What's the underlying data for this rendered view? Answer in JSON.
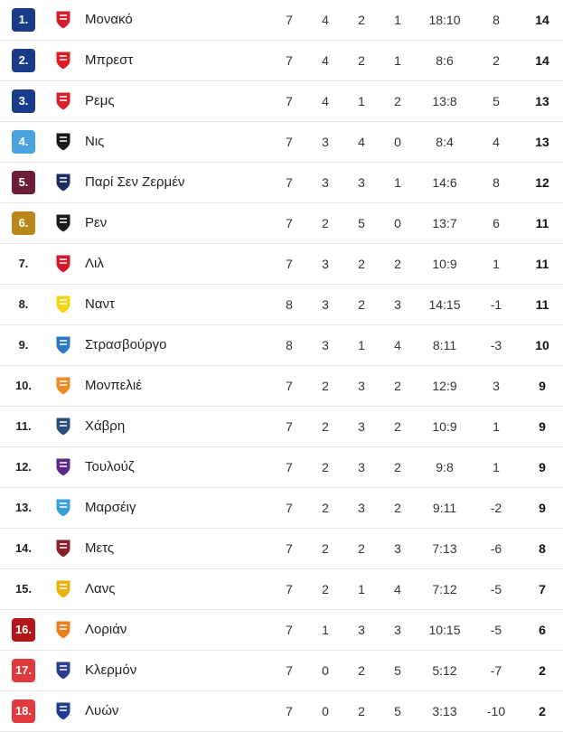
{
  "colors": {
    "champions": "#1a3a8a",
    "europa": "#4aa3df",
    "cl_qual": "#6b1e3a",
    "conference": "#b8861b",
    "playoff_down": "#e03a3e",
    "relegation": "#b3171c"
  },
  "rows": [
    {
      "rank": "1.",
      "team": "Μονακό",
      "played": "7",
      "w": "4",
      "d": "2",
      "l": "1",
      "goals": "18:10",
      "diff": "8",
      "pts": "14",
      "zone": "champions",
      "logo": "monaco-crest-icon",
      "logo_color": "#d0202e"
    },
    {
      "rank": "2.",
      "team": "Μπρεστ",
      "played": "7",
      "w": "4",
      "d": "2",
      "l": "1",
      "goals": "8:6",
      "diff": "2",
      "pts": "14",
      "zone": "champions",
      "logo": "brest-crest-icon",
      "logo_color": "#e21b23"
    },
    {
      "rank": "3.",
      "team": "Ρεμς",
      "played": "7",
      "w": "4",
      "d": "1",
      "l": "2",
      "goals": "13:8",
      "diff": "5",
      "pts": "13",
      "zone": "champions",
      "logo": "reims-crest-icon",
      "logo_color": "#d2232a"
    },
    {
      "rank": "4.",
      "team": "Νις",
      "played": "7",
      "w": "3",
      "d": "4",
      "l": "0",
      "goals": "8:4",
      "diff": "4",
      "pts": "13",
      "zone": "europa",
      "logo": "nice-crest-icon",
      "logo_color": "#1a1a1a"
    },
    {
      "rank": "5.",
      "team": "Παρί Σεν Ζερμέν",
      "played": "7",
      "w": "3",
      "d": "3",
      "l": "1",
      "goals": "14:6",
      "diff": "8",
      "pts": "12",
      "zone": "cl_qual",
      "logo": "psg-crest-icon",
      "logo_color": "#1b2c5e"
    },
    {
      "rank": "6.",
      "team": "Ρεν",
      "played": "7",
      "w": "2",
      "d": "5",
      "l": "0",
      "goals": "13:7",
      "diff": "6",
      "pts": "11",
      "zone": "conference",
      "logo": "rennes-crest-icon",
      "logo_color": "#1a1a1a"
    },
    {
      "rank": "7.",
      "team": "Λιλ",
      "played": "7",
      "w": "3",
      "d": "2",
      "l": "2",
      "goals": "10:9",
      "diff": "1",
      "pts": "11",
      "zone": "none",
      "logo": "lille-crest-icon",
      "logo_color": "#d3182e"
    },
    {
      "rank": "8.",
      "team": "Ναντ",
      "played": "8",
      "w": "3",
      "d": "2",
      "l": "3",
      "goals": "14:15",
      "diff": "-1",
      "pts": "11",
      "zone": "none",
      "logo": "nantes-crest-icon",
      "logo_color": "#f3d417"
    },
    {
      "rank": "9.",
      "team": "Στρασβούργο",
      "played": "8",
      "w": "3",
      "d": "1",
      "l": "4",
      "goals": "8:11",
      "diff": "-3",
      "pts": "10",
      "zone": "none",
      "logo": "strasbourg-crest-icon",
      "logo_color": "#2a79c2"
    },
    {
      "rank": "10.",
      "team": "Μονπελιέ",
      "played": "7",
      "w": "2",
      "d": "3",
      "l": "2",
      "goals": "12:9",
      "diff": "3",
      "pts": "9",
      "zone": "none",
      "logo": "montpellier-crest-icon",
      "logo_color": "#f08a24"
    },
    {
      "rank": "11.",
      "team": "Χάβρη",
      "played": "7",
      "w": "2",
      "d": "3",
      "l": "2",
      "goals": "10:9",
      "diff": "1",
      "pts": "9",
      "zone": "none",
      "logo": "havre-crest-icon",
      "logo_color": "#2a4f7a"
    },
    {
      "rank": "12.",
      "team": "Τουλούζ",
      "played": "7",
      "w": "2",
      "d": "3",
      "l": "2",
      "goals": "9:8",
      "diff": "1",
      "pts": "9",
      "zone": "none",
      "logo": "toulouse-crest-icon",
      "logo_color": "#5b2a86"
    },
    {
      "rank": "13.",
      "team": "Μαρσέιγ",
      "played": "7",
      "w": "2",
      "d": "3",
      "l": "2",
      "goals": "9:11",
      "diff": "-2",
      "pts": "9",
      "zone": "none",
      "logo": "marseille-crest-icon",
      "logo_color": "#3aa0d8"
    },
    {
      "rank": "14.",
      "team": "Μετς",
      "played": "7",
      "w": "2",
      "d": "2",
      "l": "3",
      "goals": "7:13",
      "diff": "-6",
      "pts": "8",
      "zone": "none",
      "logo": "metz-crest-icon",
      "logo_color": "#8a1f2c"
    },
    {
      "rank": "15.",
      "team": "Λανς",
      "played": "7",
      "w": "2",
      "d": "1",
      "l": "4",
      "goals": "7:12",
      "diff": "-5",
      "pts": "7",
      "zone": "none",
      "logo": "lens-crest-icon",
      "logo_color": "#e8b20c"
    },
    {
      "rank": "16.",
      "team": "Λοριάν",
      "played": "7",
      "w": "1",
      "d": "3",
      "l": "3",
      "goals": "10:15",
      "diff": "-5",
      "pts": "6",
      "zone": "playoff_down_dark",
      "logo": "lorient-crest-icon",
      "logo_color": "#f07d1e"
    },
    {
      "rank": "17.",
      "team": "Κλερμόν",
      "played": "7",
      "w": "0",
      "d": "2",
      "l": "5",
      "goals": "5:12",
      "diff": "-7",
      "pts": "2",
      "zone": "playoff_down",
      "logo": "clermont-crest-icon",
      "logo_color": "#2a3f8f"
    },
    {
      "rank": "18.",
      "team": "Λυών",
      "played": "7",
      "w": "0",
      "d": "2",
      "l": "5",
      "goals": "3:13",
      "diff": "-10",
      "pts": "2",
      "zone": "playoff_down",
      "logo": "lyon-crest-icon",
      "logo_color": "#1f3c8f"
    }
  ]
}
